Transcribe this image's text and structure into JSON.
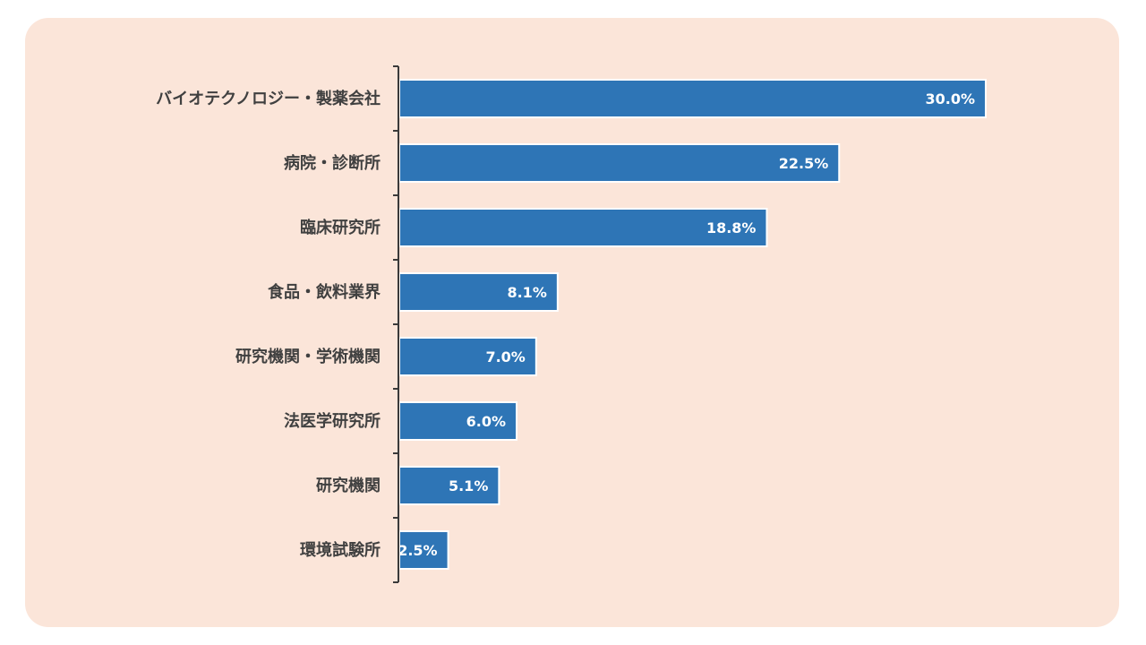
{
  "chart_data": {
    "type": "bar",
    "orientation": "horizontal",
    "categories": [
      "バイオテクノロジー・製薬会社",
      "病院・診断所",
      "臨床研究所",
      "食品・飲料業界",
      "研究機関・学術機関",
      "法医学研究所",
      "研究機関",
      "環境試験所"
    ],
    "values": [
      30.0,
      22.5,
      18.8,
      8.1,
      7.0,
      6.0,
      5.1,
      2.5
    ],
    "value_labels": [
      "30.0%",
      "22.5%",
      "18.8%",
      "8.1%",
      "7.0%",
      "6.0%",
      "5.1%",
      "2.5%"
    ],
    "xlim": [
      0,
      30
    ],
    "grid": false,
    "legend": "none",
    "bar_color": "#2e75b6",
    "background_color": "#fbe5d9"
  }
}
